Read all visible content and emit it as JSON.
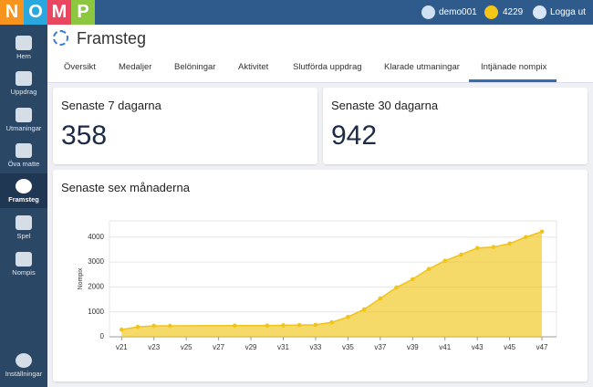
{
  "logo": [
    "N",
    "O",
    "M",
    "P"
  ],
  "topbar": {
    "user": "demo001",
    "coins": "4229",
    "logout": "Logga ut"
  },
  "sidebar": {
    "items": [
      "Hem",
      "Uppdrag",
      "Utmaningar",
      "Öva matte",
      "Framsteg",
      "Spel",
      "Nompis"
    ],
    "settings": "Inställningar"
  },
  "page_title": "Framsteg",
  "tabs": [
    "Översikt",
    "Medaljer",
    "Belöningar",
    "Aktivitet",
    "Slutförda uppdrag",
    "Klarade utmaningar",
    "Intjänade nompix"
  ],
  "cards": [
    {
      "title": "Senaste 7 dagarna",
      "value": "358"
    },
    {
      "title": "Senaste 30 dagarna",
      "value": "942"
    }
  ],
  "chart_data": {
    "type": "area",
    "title": "Senaste sex månaderna",
    "ylabel": "Nompix",
    "x": [
      21,
      22,
      23,
      24,
      28,
      30,
      31,
      32,
      33,
      34,
      35,
      36,
      37,
      38,
      39,
      40,
      41,
      42,
      43,
      44,
      45,
      46,
      47
    ],
    "series": [
      {
        "name": "Nompix",
        "color": "#f0c419",
        "values": [
          290,
          400,
          440,
          440,
          450,
          450,
          460,
          470,
          480,
          580,
          800,
          1100,
          1540,
          1980,
          2310,
          2720,
          3050,
          3300,
          3560,
          3600,
          3740,
          4000,
          4220
        ]
      }
    ],
    "xlim": [
      20.25,
      47.9
    ],
    "xticks": [
      {
        "value": 21,
        "label": "v21"
      },
      {
        "value": 23,
        "label": "v23"
      },
      {
        "value": 25,
        "label": "v25"
      },
      {
        "value": 27,
        "label": "v27"
      },
      {
        "value": 29,
        "label": "v29"
      },
      {
        "value": 31,
        "label": "v31"
      },
      {
        "value": 33,
        "label": "v33"
      },
      {
        "value": 35,
        "label": "v35"
      },
      {
        "value": 37,
        "label": "v37"
      },
      {
        "value": 39,
        "label": "v39"
      },
      {
        "value": 41,
        "label": "v41"
      },
      {
        "value": 43,
        "label": "v43"
      },
      {
        "value": 45,
        "label": "v45"
      },
      {
        "value": 47,
        "label": "v47"
      }
    ],
    "ylim": [
      0,
      4650
    ],
    "yticks": [
      0,
      1000,
      2000,
      3000,
      4000
    ],
    "grid": true
  }
}
